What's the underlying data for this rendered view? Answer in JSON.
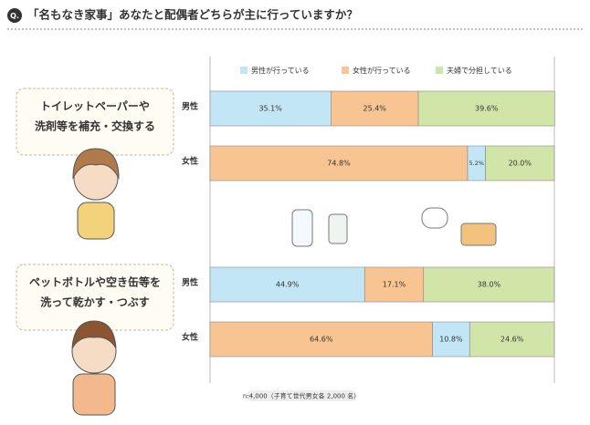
{
  "chart_data": {
    "type": "bar",
    "orientation": "horizontal",
    "stacked": true,
    "title": "「名もなき家事」あなたと配偶者どちらが主に行っていますか？",
    "question_mark": "Q.",
    "note": "n:4,000（子育て世代男女各 2,000 名）",
    "groups": [
      {
        "lines": [
          "トイレットペーパーや",
          "洗剤等を補充・交換する"
        ]
      },
      {
        "lines": [
          "ペットボトルや空き缶等を",
          "洗って乾かす・つぶす"
        ]
      }
    ],
    "categories": [
      "男性",
      "女性",
      "男性",
      "女性"
    ],
    "xlim": [
      0,
      100
    ],
    "series": [
      {
        "name": "男性が行っている",
        "color": "#c3e6f6",
        "values": [
          35.1,
          5.2,
          44.9,
          10.8
        ],
        "value_labels": [
          "35.1%",
          "5.2%",
          "44.9%",
          "10.8%"
        ]
      },
      {
        "name": "女性が行っている",
        "color": "#f8c592",
        "values": [
          25.4,
          74.8,
          17.1,
          64.6
        ],
        "value_labels": [
          "25.4%",
          "74.8%",
          "17.1%",
          "64.6%"
        ]
      },
      {
        "name": "夫婦で分担している",
        "color": "#d2e5a8",
        "values": [
          39.6,
          20.0,
          38.0,
          24.6
        ],
        "value_labels": [
          "39.6%",
          "20.0%",
          "38.0%",
          "24.6%"
        ]
      }
    ]
  }
}
